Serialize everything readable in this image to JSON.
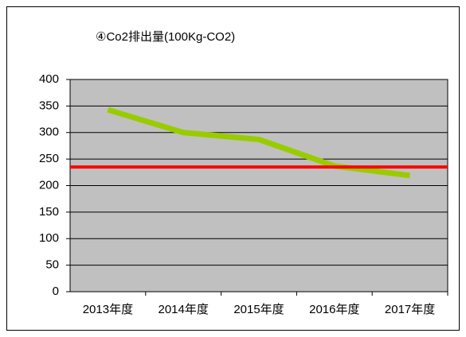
{
  "chart_data": {
    "type": "line",
    "title": "④Co2排出量(100Kg-CO2)",
    "categories": [
      "2013年度",
      "2014年度",
      "2015年度",
      "2016年度",
      "2017年度"
    ],
    "values": [
      343,
      300,
      287,
      237,
      219
    ],
    "color": "#99cc00",
    "reference_line": {
      "value": 235,
      "color": "#ff0000"
    },
    "ylim": [
      0,
      400
    ],
    "yticks": [
      0,
      50,
      100,
      150,
      200,
      250,
      300,
      350,
      400
    ],
    "grid": true,
    "plot_background": "#c0c0c0"
  }
}
